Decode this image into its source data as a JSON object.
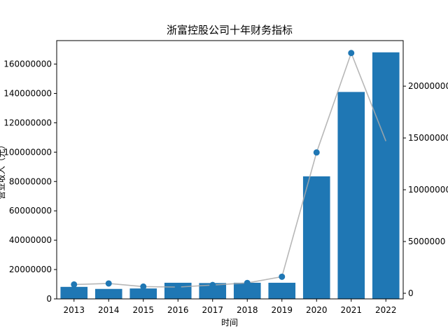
{
  "chart_data": {
    "type": "bar",
    "title": "浙富控股公司十年财务指标",
    "xlabel": "时间",
    "ylabel": "营业收入（元）",
    "categories": [
      "2013",
      "2014",
      "2015",
      "2016",
      "2017",
      "2018",
      "2019",
      "2020",
      "2021",
      "2022"
    ],
    "series": [
      {
        "type": "bar",
        "axis": "left",
        "color": "#1f77b4",
        "values": [
          8200000,
          6800000,
          7100000,
          11000000,
          10800000,
          11000000,
          11000000,
          83500000,
          141000000,
          168000000
        ]
      },
      {
        "type": "line",
        "axis": "right",
        "line_color": "#aaaaaa",
        "marker_color": "#1f77b4",
        "values": [
          850000,
          950000,
          650000,
          600000,
          800000,
          1000000,
          1600000,
          13600000,
          23200000,
          14700000
        ],
        "markers": [
          true,
          true,
          true,
          true,
          true,
          true,
          true,
          true,
          true,
          false
        ]
      }
    ],
    "left_axis": {
      "ylim": [
        0,
        176000000
      ],
      "ticks": [
        0,
        20000000,
        40000000,
        60000000,
        80000000,
        100000000,
        120000000,
        140000000,
        160000000
      ],
      "tick_labels": [
        "0",
        "20000000",
        "40000000",
        "60000000",
        "80000000",
        "100000000",
        "120000000",
        "140000000",
        "160000000"
      ]
    },
    "right_axis": {
      "ylim": [
        -540000,
        24400000
      ],
      "ticks": [
        0,
        5000000,
        10000000,
        15000000,
        20000000
      ],
      "tick_labels": [
        "0",
        "5000000",
        "10000000",
        "15000000",
        "20000000"
      ]
    },
    "grid": false
  }
}
